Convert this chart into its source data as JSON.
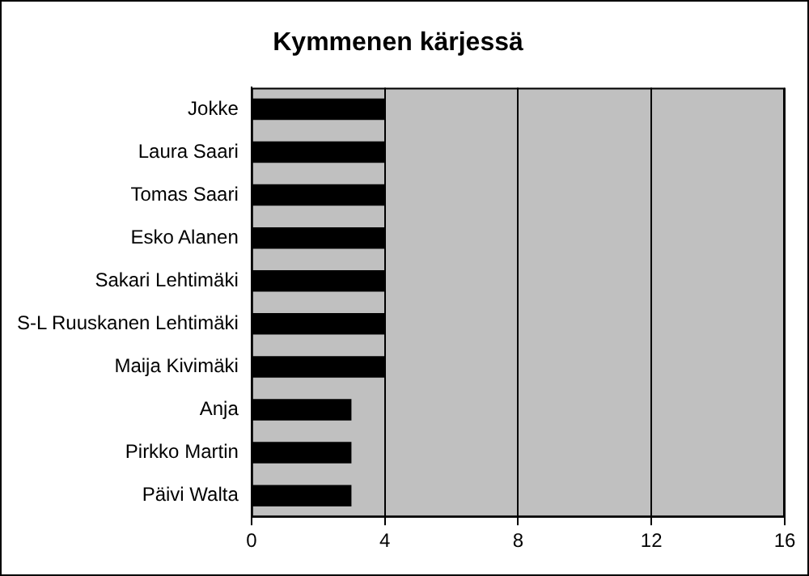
{
  "chart_data": {
    "type": "bar",
    "orientation": "horizontal",
    "title": "Kymmenen kärjessä",
    "categories": [
      "Jokke",
      "Laura Saari",
      "Tomas Saari",
      "Esko Alanen",
      "Sakari Lehtimäki",
      "S-L Ruuskanen Lehtimäki",
      "Maija Kivimäki",
      "Anja",
      "Pirkko Martin",
      "Päivi Walta"
    ],
    "values": [
      4,
      4,
      4,
      4,
      4,
      4,
      4,
      3,
      3,
      3
    ],
    "color": "#000000",
    "xlim": [
      0,
      16
    ],
    "xticks": [
      0,
      4,
      8,
      12,
      16
    ],
    "grid": "x"
  }
}
